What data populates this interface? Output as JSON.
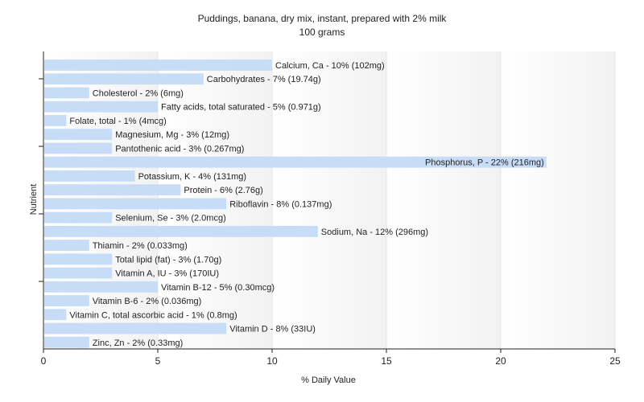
{
  "chart_data": {
    "type": "bar",
    "orientation": "horizontal",
    "title": "Puddings, banana, dry mix, instant, prepared with 2% milk",
    "subtitle": "100 grams",
    "xlabel": "% Daily Value",
    "ylabel": "Nutrient",
    "xlim": [
      0,
      25
    ],
    "xticks": [
      0,
      5,
      10,
      15,
      20,
      25
    ],
    "grid": true,
    "bar_color": "#c6dcf7",
    "categories": [
      "Calcium, Ca - 10% (102mg)",
      "Carbohydrates - 7% (19.74g)",
      "Cholesterol - 2% (6mg)",
      "Fatty acids, total saturated - 5% (0.971g)",
      "Folate, total - 1% (4mcg)",
      "Magnesium, Mg - 3% (12mg)",
      "Pantothenic acid - 3% (0.267mg)",
      "Phosphorus, P - 22% (216mg)",
      "Potassium, K - 4% (131mg)",
      "Protein - 6% (2.76g)",
      "Riboflavin - 8% (0.137mg)",
      "Selenium, Se - 3% (2.0mcg)",
      "Sodium, Na - 12% (296mg)",
      "Thiamin - 2% (0.033mg)",
      "Total lipid (fat) - 3% (1.70g)",
      "Vitamin A, IU - 3% (170IU)",
      "Vitamin B-12 - 5% (0.30mcg)",
      "Vitamin B-6 - 2% (0.036mg)",
      "Vitamin C, total ascorbic acid - 1% (0.8mg)",
      "Vitamin D - 8% (33IU)",
      "Zinc, Zn - 2% (0.33mg)"
    ],
    "values": [
      10,
      7,
      2,
      5,
      1,
      3,
      3,
      22,
      4,
      6,
      8,
      3,
      12,
      2,
      3,
      3,
      5,
      2,
      1,
      8,
      2
    ]
  }
}
